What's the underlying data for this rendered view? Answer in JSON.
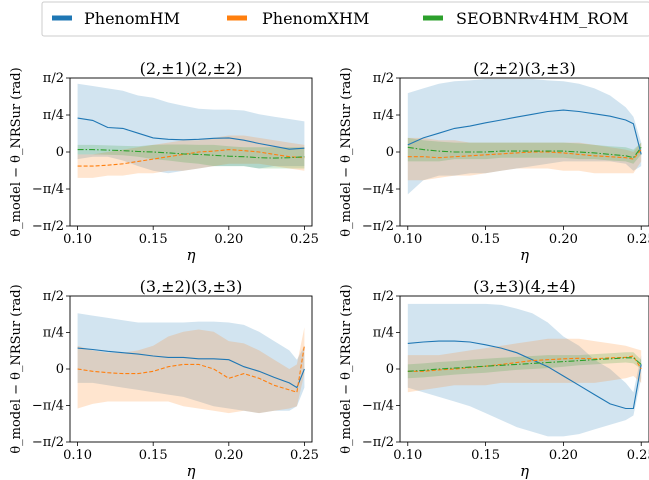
{
  "colors": {
    "phenomhm": "#1f77b4",
    "phenomxhm": "#ff7f0e",
    "seob": "#2ca02c"
  },
  "legend": {
    "placement": "top",
    "entries": [
      {
        "label": "PhenomHM",
        "color": "#1f77b4"
      },
      {
        "label": "PhenomXHM",
        "color": "#ff7f0e"
      },
      {
        "label": "SEOBNRv4HM_ROM",
        "color": "#2ca02c"
      }
    ]
  },
  "chart_data": [
    {
      "type": "line",
      "title": "(2,±1)(2,±2)",
      "xlabel": "η",
      "ylabel": "θ_model − θ_NRSur (rad)",
      "xlim": [
        0.095,
        0.255
      ],
      "ylim": [
        -1.5708,
        1.5708
      ],
      "xticks": [
        0.1,
        0.15,
        0.2,
        0.25
      ],
      "xtick_labels": [
        "0.10",
        "0.15",
        "0.20",
        "0.25"
      ],
      "yticks": [
        -1.5708,
        -0.7854,
        0,
        0.7854,
        1.5708
      ],
      "ytick_labels": [
        "−π/2",
        "−π/4",
        "0",
        "π/4",
        "π/2"
      ],
      "series": [
        {
          "name": "PhenomHM",
          "x": [
            0.1,
            0.11,
            0.12,
            0.13,
            0.14,
            0.15,
            0.16,
            0.17,
            0.18,
            0.19,
            0.2,
            0.21,
            0.22,
            0.23,
            0.24,
            0.25
          ],
          "y": [
            0.72,
            0.67,
            0.52,
            0.5,
            0.4,
            0.3,
            0.27,
            0.26,
            0.27,
            0.29,
            0.3,
            0.25,
            0.18,
            0.12,
            0.06,
            0.08
          ],
          "lower": [
            -0.15,
            -0.1,
            -0.1,
            -0.18,
            -0.3,
            -0.4,
            -0.45,
            -0.4,
            -0.35,
            -0.3,
            -0.3,
            -0.3,
            -0.35,
            -0.3,
            -0.3,
            -0.3
          ],
          "upper": [
            1.45,
            1.4,
            1.35,
            1.3,
            1.2,
            1.15,
            1.05,
            0.98,
            0.92,
            0.9,
            0.9,
            0.88,
            0.8,
            0.75,
            0.7,
            0.65
          ]
        },
        {
          "name": "PhenomXHM",
          "x": [
            0.1,
            0.11,
            0.12,
            0.13,
            0.14,
            0.15,
            0.16,
            0.17,
            0.18,
            0.19,
            0.2,
            0.21,
            0.22,
            0.23,
            0.24,
            0.25
          ],
          "y": [
            -0.3,
            -0.3,
            -0.28,
            -0.25,
            -0.2,
            -0.15,
            -0.1,
            -0.05,
            0.0,
            0.02,
            0.05,
            0.03,
            0.0,
            -0.05,
            -0.1,
            -0.12
          ],
          "lower": [
            -0.55,
            -0.55,
            -0.5,
            -0.5,
            -0.45,
            -0.45,
            -0.4,
            -0.4,
            -0.35,
            -0.3,
            -0.25,
            -0.25,
            -0.25,
            -0.3,
            -0.35,
            -0.4
          ],
          "upper": [
            -0.05,
            -0.05,
            0.0,
            0.05,
            0.1,
            0.15,
            0.2,
            0.25,
            0.25,
            0.3,
            0.35,
            0.35,
            0.3,
            0.25,
            0.2,
            0.15
          ]
        },
        {
          "name": "SEOBNRv4HM_ROM",
          "x": [
            0.1,
            0.11,
            0.12,
            0.13,
            0.14,
            0.15,
            0.16,
            0.17,
            0.18,
            0.19,
            0.2,
            0.21,
            0.22,
            0.23,
            0.24,
            0.25
          ],
          "y": [
            0.05,
            0.05,
            0.04,
            0.03,
            0.01,
            0.0,
            -0.02,
            -0.04,
            -0.05,
            -0.07,
            -0.09,
            -0.1,
            -0.12,
            -0.13,
            -0.12,
            -0.1
          ],
          "lower": [
            -0.05,
            -0.05,
            -0.06,
            -0.07,
            -0.1,
            -0.15,
            -0.18,
            -0.22,
            -0.25,
            -0.3,
            -0.3,
            -0.3,
            -0.35,
            -0.35,
            -0.35,
            -0.35
          ],
          "upper": [
            0.15,
            0.15,
            0.14,
            0.13,
            0.12,
            0.15,
            0.16,
            0.16,
            0.15,
            0.15,
            0.12,
            0.1,
            0.1,
            0.1,
            0.1,
            0.1
          ]
        }
      ]
    },
    {
      "type": "line",
      "title": "(2,±2)(3,±3)",
      "xlabel": "η",
      "ylabel": "θ_model − θ_NRSur (rad)",
      "xlim": [
        0.095,
        0.255
      ],
      "ylim": [
        -1.5708,
        1.5708
      ],
      "xticks": [
        0.1,
        0.15,
        0.2,
        0.25
      ],
      "xtick_labels": [
        "0.10",
        "0.15",
        "0.20",
        "0.25"
      ],
      "yticks": [
        -1.5708,
        -0.7854,
        0,
        0.7854,
        1.5708
      ],
      "ytick_labels": [
        "−π/2",
        "−π/4",
        "0",
        "π/4",
        "π/2"
      ],
      "series": [
        {
          "name": "PhenomHM",
          "x": [
            0.1,
            0.11,
            0.12,
            0.13,
            0.14,
            0.15,
            0.16,
            0.17,
            0.18,
            0.19,
            0.2,
            0.21,
            0.22,
            0.23,
            0.24,
            0.245,
            0.25
          ],
          "y": [
            0.15,
            0.3,
            0.4,
            0.5,
            0.55,
            0.62,
            0.68,
            0.74,
            0.8,
            0.86,
            0.89,
            0.86,
            0.81,
            0.76,
            0.68,
            0.6,
            -0.05
          ],
          "lower": [
            -0.9,
            -0.6,
            -0.5,
            -0.5,
            -0.45,
            -0.45,
            -0.4,
            -0.35,
            -0.3,
            -0.25,
            -0.2,
            -0.2,
            -0.2,
            -0.2,
            -0.25,
            -0.4,
            -0.3
          ],
          "upper": [
            1.25,
            1.35,
            1.45,
            1.5,
            1.52,
            1.55,
            1.55,
            1.55,
            1.55,
            1.52,
            1.5,
            1.45,
            1.35,
            1.2,
            0.95,
            0.75,
            0.2
          ]
        },
        {
          "name": "PhenomXHM",
          "x": [
            0.1,
            0.11,
            0.12,
            0.13,
            0.14,
            0.15,
            0.16,
            0.17,
            0.18,
            0.19,
            0.2,
            0.21,
            0.22,
            0.23,
            0.24,
            0.245,
            0.25
          ],
          "y": [
            -0.1,
            -0.1,
            -0.12,
            -0.1,
            -0.08,
            -0.06,
            -0.04,
            -0.02,
            0.0,
            0.0,
            -0.02,
            -0.05,
            -0.08,
            -0.1,
            -0.12,
            -0.15,
            0.05
          ],
          "lower": [
            -0.6,
            -0.6,
            -0.55,
            -0.5,
            -0.5,
            -0.45,
            -0.4,
            -0.35,
            -0.35,
            -0.35,
            -0.4,
            -0.4,
            -0.45,
            -0.45,
            -0.45,
            -0.45,
            -0.2
          ],
          "upper": [
            0.3,
            0.3,
            0.25,
            0.25,
            0.2,
            0.2,
            0.2,
            0.2,
            0.2,
            0.2,
            0.2,
            0.2,
            0.15,
            0.1,
            0.05,
            0.0,
            0.2
          ]
        },
        {
          "name": "SEOBNRv4HM_ROM",
          "x": [
            0.1,
            0.11,
            0.12,
            0.13,
            0.14,
            0.15,
            0.16,
            0.17,
            0.18,
            0.19,
            0.2,
            0.21,
            0.22,
            0.23,
            0.24,
            0.245,
            0.25
          ],
          "y": [
            0.1,
            0.05,
            0.02,
            0.0,
            0.0,
            0.0,
            0.02,
            0.02,
            0.02,
            0.02,
            0.02,
            0.0,
            -0.02,
            -0.05,
            -0.08,
            -0.12,
            0.1
          ],
          "lower": [
            -0.2,
            -0.2,
            -0.2,
            -0.15,
            -0.15,
            -0.15,
            -0.12,
            -0.12,
            -0.12,
            -0.12,
            -0.12,
            -0.15,
            -0.15,
            -0.18,
            -0.2,
            -0.25,
            -0.05
          ],
          "upper": [
            0.3,
            0.25,
            0.22,
            0.2,
            0.2,
            0.2,
            0.2,
            0.2,
            0.2,
            0.2,
            0.2,
            0.18,
            0.15,
            0.12,
            0.1,
            0.05,
            0.2
          ]
        }
      ]
    },
    {
      "type": "line",
      "title": "(3,±2)(3,±3)",
      "xlabel": "η",
      "ylabel": "θ_model − θ_NRSur (rad)",
      "xlim": [
        0.095,
        0.255
      ],
      "ylim": [
        -1.5708,
        1.5708
      ],
      "xticks": [
        0.1,
        0.15,
        0.2,
        0.25
      ],
      "xtick_labels": [
        "0.10",
        "0.15",
        "0.20",
        "0.25"
      ],
      "yticks": [
        -1.5708,
        -0.7854,
        0,
        0.7854,
        1.5708
      ],
      "ytick_labels": [
        "−π/2",
        "−π/4",
        "0",
        "π/4",
        "π/2"
      ],
      "series": [
        {
          "name": "PhenomHM",
          "x": [
            0.1,
            0.11,
            0.12,
            0.13,
            0.14,
            0.15,
            0.16,
            0.17,
            0.18,
            0.19,
            0.2,
            0.21,
            0.22,
            0.23,
            0.24,
            0.245,
            0.25
          ],
          "y": [
            0.45,
            0.42,
            0.38,
            0.35,
            0.32,
            0.28,
            0.25,
            0.25,
            0.22,
            0.22,
            0.2,
            0.05,
            -0.05,
            -0.18,
            -0.3,
            -0.4,
            0.0
          ],
          "lower": [
            -0.3,
            -0.3,
            -0.35,
            -0.4,
            -0.45,
            -0.5,
            -0.55,
            -0.6,
            -0.7,
            -0.8,
            -0.85,
            -0.9,
            -0.95,
            -0.9,
            -0.9,
            -0.8,
            -0.4
          ],
          "upper": [
            1.2,
            1.15,
            1.1,
            1.05,
            1.0,
            1.0,
            1.0,
            1.0,
            1.02,
            1.02,
            1.0,
            0.95,
            0.8,
            0.6,
            0.4,
            0.2,
            0.5
          ]
        },
        {
          "name": "PhenomXHM",
          "x": [
            0.1,
            0.11,
            0.12,
            0.13,
            0.14,
            0.15,
            0.16,
            0.17,
            0.18,
            0.19,
            0.2,
            0.21,
            0.22,
            0.23,
            0.24,
            0.245,
            0.25
          ],
          "y": [
            0.0,
            -0.05,
            -0.08,
            -0.1,
            -0.1,
            -0.05,
            0.05,
            0.1,
            0.1,
            0.0,
            -0.2,
            -0.1,
            -0.2,
            -0.35,
            -0.45,
            -0.5,
            0.5
          ],
          "lower": [
            -0.85,
            -0.75,
            -0.7,
            -0.7,
            -0.7,
            -0.7,
            -0.7,
            -0.8,
            -0.85,
            -0.9,
            -0.95,
            -0.9,
            -0.95,
            -0.9,
            -0.85,
            -0.8,
            -0.1
          ],
          "upper": [
            0.5,
            0.4,
            0.35,
            0.35,
            0.4,
            0.5,
            0.7,
            0.8,
            0.85,
            0.8,
            0.6,
            0.55,
            0.4,
            0.2,
            0.0,
            0.1,
            0.9
          ]
        }
      ]
    },
    {
      "type": "line",
      "title": "(3,±3)(4,±4)",
      "xlabel": "η",
      "ylabel": "θ_model − θ_NRSur (rad)",
      "xlim": [
        0.095,
        0.255
      ],
      "ylim": [
        -1.5708,
        1.5708
      ],
      "xticks": [
        0.1,
        0.15,
        0.2,
        0.25
      ],
      "xtick_labels": [
        "0.10",
        "0.15",
        "0.20",
        "0.25"
      ],
      "yticks": [
        -1.5708,
        -0.7854,
        0,
        0.7854,
        1.5708
      ],
      "ytick_labels": [
        "−π/2",
        "−π/4",
        "0",
        "π/4",
        "π/2"
      ],
      "series": [
        {
          "name": "PhenomHM",
          "x": [
            0.1,
            0.11,
            0.12,
            0.13,
            0.14,
            0.15,
            0.16,
            0.17,
            0.18,
            0.19,
            0.2,
            0.21,
            0.22,
            0.23,
            0.24,
            0.245,
            0.25
          ],
          "y": [
            0.55,
            0.58,
            0.6,
            0.6,
            0.58,
            0.52,
            0.45,
            0.35,
            0.2,
            0.05,
            -0.15,
            -0.35,
            -0.55,
            -0.75,
            -0.85,
            -0.85,
            0.1
          ],
          "lower": [
            -0.4,
            -0.5,
            -0.6,
            -0.7,
            -0.8,
            -0.95,
            -1.1,
            -1.25,
            -1.35,
            -1.45,
            -1.45,
            -1.4,
            -1.3,
            -1.2,
            -1.1,
            -1.0,
            -0.2
          ],
          "upper": [
            1.4,
            1.4,
            1.4,
            1.4,
            1.4,
            1.4,
            1.38,
            1.3,
            1.2,
            1.0,
            0.7,
            0.5,
            0.2,
            0.0,
            -0.3,
            -0.5,
            0.3
          ]
        },
        {
          "name": "PhenomXHM",
          "x": [
            0.1,
            0.11,
            0.12,
            0.13,
            0.14,
            0.15,
            0.16,
            0.17,
            0.18,
            0.19,
            0.2,
            0.21,
            0.22,
            0.23,
            0.24,
            0.245,
            0.25
          ],
          "y": [
            -0.05,
            -0.05,
            -0.02,
            0.0,
            0.03,
            0.06,
            0.1,
            0.14,
            0.18,
            0.2,
            0.22,
            0.23,
            0.22,
            0.24,
            0.25,
            0.28,
            0.0
          ],
          "lower": [
            -0.5,
            -0.45,
            -0.4,
            -0.35,
            -0.35,
            -0.35,
            -0.3,
            -0.3,
            -0.3,
            -0.3,
            -0.3,
            -0.3,
            -0.3,
            -0.25,
            -0.2,
            -0.15,
            -0.3
          ],
          "upper": [
            0.3,
            0.3,
            0.3,
            0.35,
            0.4,
            0.45,
            0.5,
            0.55,
            0.6,
            0.65,
            0.65,
            0.65,
            0.6,
            0.55,
            0.5,
            0.45,
            0.4
          ]
        },
        {
          "name": "SEOBNRv4HM_ROM",
          "x": [
            0.1,
            0.11,
            0.12,
            0.13,
            0.14,
            0.15,
            0.16,
            0.17,
            0.18,
            0.19,
            0.2,
            0.21,
            0.22,
            0.23,
            0.24,
            0.245,
            0.25
          ],
          "y": [
            -0.05,
            -0.03,
            0.0,
            0.02,
            0.04,
            0.06,
            0.08,
            0.1,
            0.12,
            0.14,
            0.16,
            0.18,
            0.2,
            0.22,
            0.24,
            0.24,
            0.1
          ],
          "lower": [
            -0.2,
            -0.18,
            -0.15,
            -0.12,
            -0.1,
            -0.08,
            -0.05,
            -0.02,
            0.0,
            0.02,
            0.05,
            0.08,
            0.1,
            0.12,
            0.14,
            0.12,
            0.0
          ],
          "upper": [
            0.1,
            0.12,
            0.15,
            0.17,
            0.2,
            0.22,
            0.24,
            0.26,
            0.28,
            0.3,
            0.3,
            0.3,
            0.32,
            0.34,
            0.36,
            0.36,
            0.2
          ]
        }
      ]
    }
  ]
}
